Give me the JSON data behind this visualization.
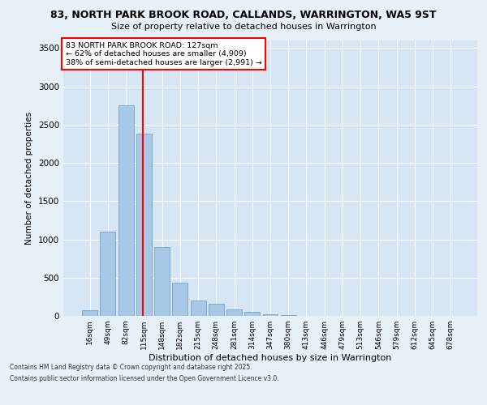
{
  "title_line1": "83, NORTH PARK BROOK ROAD, CALLANDS, WARRINGTON, WA5 9ST",
  "title_line2": "Size of property relative to detached houses in Warrington",
  "xlabel": "Distribution of detached houses by size in Warrington",
  "ylabel": "Number of detached properties",
  "categories": [
    "16sqm",
    "49sqm",
    "82sqm",
    "115sqm",
    "148sqm",
    "182sqm",
    "215sqm",
    "248sqm",
    "281sqm",
    "314sqm",
    "347sqm",
    "380sqm",
    "413sqm",
    "446sqm",
    "479sqm",
    "513sqm",
    "546sqm",
    "579sqm",
    "612sqm",
    "645sqm",
    "678sqm"
  ],
  "values": [
    70,
    1100,
    2750,
    2380,
    900,
    430,
    200,
    160,
    90,
    50,
    20,
    10,
    5,
    3,
    2,
    1,
    1,
    1,
    0,
    0,
    0
  ],
  "bar_color": "#a8c8e8",
  "bar_edge_color": "#6699bb",
  "vline_color": "red",
  "annotation_title": "83 NORTH PARK BROOK ROAD: 127sqm",
  "annotation_line1": "← 62% of detached houses are smaller (4,909)",
  "annotation_line2": "38% of semi-detached houses are larger (2,991) →",
  "annotation_box_color": "red",
  "ylim": [
    0,
    3600
  ],
  "yticks": [
    0,
    500,
    1000,
    1500,
    2000,
    2500,
    3000,
    3500
  ],
  "footnote_line1": "Contains HM Land Registry data © Crown copyright and database right 2025.",
  "footnote_line2": "Contains public sector information licensed under the Open Government Licence v3.0.",
  "bg_color": "#e8f0f8",
  "plot_bg_color": "#d6e6f5",
  "grid_color": "#ffffff"
}
